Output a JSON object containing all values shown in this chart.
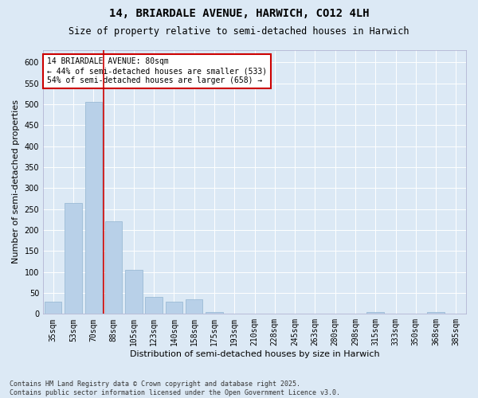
{
  "title": "14, BRIARDALE AVENUE, HARWICH, CO12 4LH",
  "subtitle": "Size of property relative to semi-detached houses in Harwich",
  "xlabel": "Distribution of semi-detached houses by size in Harwich",
  "ylabel": "Number of semi-detached properties",
  "categories": [
    "35sqm",
    "53sqm",
    "70sqm",
    "88sqm",
    "105sqm",
    "123sqm",
    "140sqm",
    "158sqm",
    "175sqm",
    "193sqm",
    "210sqm",
    "228sqm",
    "245sqm",
    "263sqm",
    "280sqm",
    "298sqm",
    "315sqm",
    "333sqm",
    "350sqm",
    "368sqm",
    "385sqm"
  ],
  "values": [
    30,
    265,
    505,
    220,
    105,
    40,
    30,
    35,
    5,
    0,
    0,
    0,
    0,
    0,
    0,
    0,
    5,
    0,
    0,
    5,
    0
  ],
  "bar_color": "#b8d0e8",
  "bar_edge_color": "#92b4d0",
  "vline_color": "#cc0000",
  "annotation_text": "14 BRIARDALE AVENUE: 80sqm\n← 44% of semi-detached houses are smaller (533)\n54% of semi-detached houses are larger (658) →",
  "annotation_box_facecolor": "#ffffff",
  "annotation_box_edgecolor": "#cc0000",
  "ylim": [
    0,
    630
  ],
  "yticks": [
    0,
    50,
    100,
    150,
    200,
    250,
    300,
    350,
    400,
    450,
    500,
    550,
    600
  ],
  "bg_color": "#dce9f5",
  "plot_bg_color": "#dce9f5",
  "footer": "Contains HM Land Registry data © Crown copyright and database right 2025.\nContains public sector information licensed under the Open Government Licence v3.0.",
  "title_fontsize": 10,
  "subtitle_fontsize": 8.5,
  "axis_label_fontsize": 8,
  "tick_fontsize": 7,
  "footer_fontsize": 6
}
